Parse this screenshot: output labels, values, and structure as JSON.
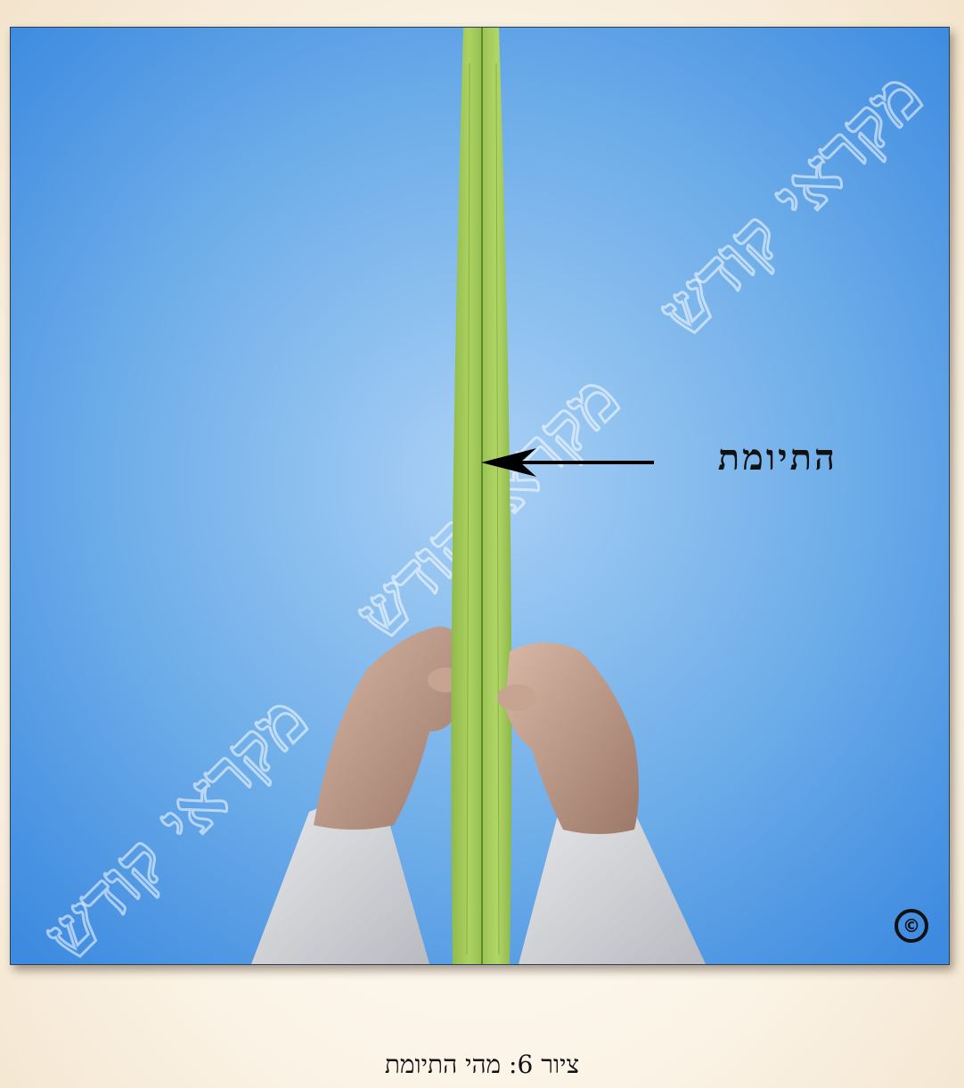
{
  "figure": {
    "pointer_label": "התיומת",
    "copyright_symbol": "©",
    "caption": "ציור 6: מהי התיומת",
    "watermark_text": "מקראי קודש",
    "colors": {
      "sky_center": "#a9d0f5",
      "sky_edge": "#3d8ae0",
      "lulav_green": "#a6cc5a",
      "lulav_dark": "#6f9a34",
      "sleeve": "#d9dadd",
      "skin": "#c9a593",
      "arrow": "#000000"
    }
  }
}
